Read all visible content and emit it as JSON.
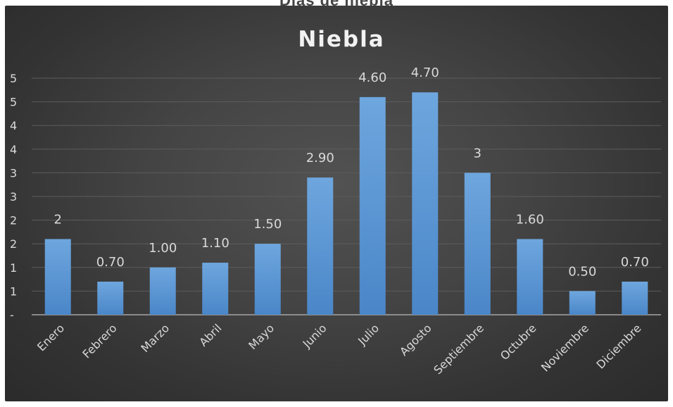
{
  "page": {
    "clipped_title_text": "Días de niebla"
  },
  "chart_data": {
    "type": "bar",
    "title": "Niebla",
    "categories": [
      "Enero",
      "Febrero",
      "Marzo",
      "Abril",
      "Mayo",
      "Junio",
      "Julio",
      "Agosto",
      "Septiembre",
      "Octubre",
      "Noviembre",
      "Diciembre"
    ],
    "values": [
      1.6,
      0.7,
      1.0,
      1.1,
      1.5,
      2.9,
      4.6,
      4.7,
      3.0,
      1.6,
      0.5,
      0.7
    ],
    "data_labels": [
      "2",
      "0.70",
      "1.00",
      "1.10",
      "1.50",
      "2.90",
      "4.60",
      "4.70",
      "3",
      "1.60",
      "0.50",
      "0.70"
    ],
    "y_tick_values": [
      0,
      0.5,
      1,
      1.5,
      2,
      2.5,
      3,
      3.5,
      4,
      4.5,
      5
    ],
    "y_tick_labels": [
      "-",
      "1",
      "1",
      "2",
      "2",
      "3",
      "3",
      "4",
      "4",
      "5",
      "5"
    ],
    "xlabel": "",
    "ylabel": "",
    "ylim": [
      0,
      5
    ],
    "grid": true,
    "legend": "none",
    "colors": {
      "bar_top": "#6ea6de",
      "bar_bottom": "#4a86c8",
      "text": "#d9d9d9",
      "title": "#f2f2f2",
      "grid": "#5c5c5c",
      "axis": "#a6a6a6"
    }
  }
}
